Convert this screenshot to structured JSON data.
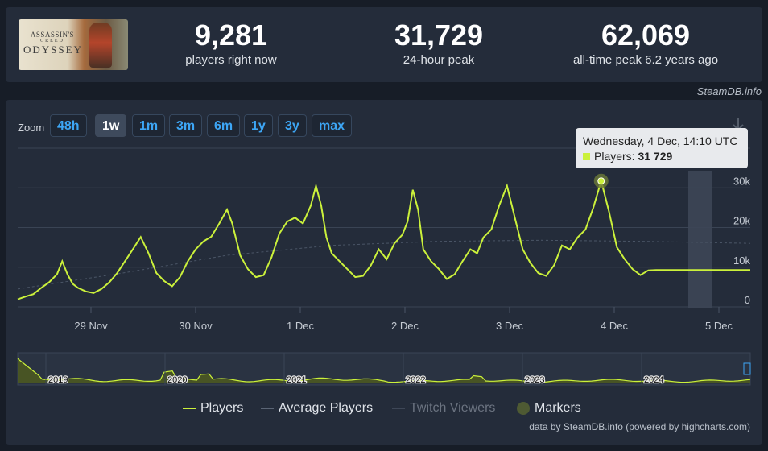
{
  "header": {
    "game_image_alt": "ASSASSIN'S CREED ODYSSEY",
    "game_title_line1": "ASSASSIN'S",
    "game_title_line2": "CREED",
    "game_title_line3": "ODYSSEY",
    "stats": [
      {
        "value": "9,281",
        "label": "players right now"
      },
      {
        "value": "31,729",
        "label": "24-hour peak"
      },
      {
        "value": "62,069",
        "label": "all-time peak 6.2 years ago"
      }
    ],
    "attribution": "SteamDB.info"
  },
  "zoom": {
    "label": "Zoom",
    "buttons": [
      "48h",
      "1w",
      "1m",
      "3m",
      "6m",
      "1y",
      "3y",
      "max"
    ],
    "active": "1w"
  },
  "tooltip": {
    "date": "Wednesday, 4 Dec, 14:10 UTC",
    "series": "Players:",
    "value": "31 729"
  },
  "legend": {
    "players": "Players",
    "average": "Average Players",
    "twitch": "Twitch Viewers",
    "markers": "Markers"
  },
  "credit": "data by SteamDB.info (powered by highcharts.com)",
  "colors": {
    "players_line": "#cbf13b",
    "average_line": "#4a5566",
    "background": "#242c3a",
    "accent_blue": "#3da6f5"
  },
  "chart_data": {
    "type": "line",
    "x_tick_labels": [
      "29 Nov",
      "30 Nov",
      "1 Dec",
      "2 Dec",
      "3 Dec",
      "4 Dec",
      "5 Dec"
    ],
    "y_tick_labels": [
      "0",
      "10k",
      "20k",
      "30k"
    ],
    "ylim": [
      0,
      40000
    ],
    "series": [
      {
        "name": "Players",
        "x_days": [
          0,
          0.15,
          0.3,
          0.45,
          0.6,
          0.75,
          0.85,
          0.95,
          1.05,
          1.15,
          1.3,
          1.45,
          1.6,
          1.75,
          1.9,
          2.05,
          2.2,
          2.35,
          2.5,
          2.65,
          2.8,
          2.95,
          3.1,
          3.25,
          3.4,
          3.55,
          3.7,
          3.85,
          4.0,
          4.1,
          4.25,
          4.4,
          4.55,
          4.7,
          4.85,
          5.0,
          5.15,
          5.3,
          5.45,
          5.6,
          5.7,
          5.8,
          5.9,
          6.0,
          6.15,
          6.3,
          6.45,
          6.6,
          6.75,
          6.9,
          7.05,
          7.2,
          7.35,
          7.45,
          7.55,
          7.65,
          7.75,
          7.9,
          8.05,
          8.2,
          8.35,
          8.5,
          8.65,
          8.78,
          8.9,
          9.05,
          9.2,
          9.35,
          9.5,
          9.65,
          9.8,
          9.95,
          10.1,
          10.25,
          10.4,
          10.55,
          10.7,
          10.85,
          11.0,
          11.15,
          11.3,
          11.45,
          11.6,
          11.75,
          11.9,
          12.05,
          12.2,
          12.35,
          12.5,
          12.65,
          12.8,
          12.95,
          13.1,
          13.25,
          13.4,
          13.55,
          13.7,
          13.85,
          14.0
        ],
        "values": [
          1900,
          2600,
          3200,
          4800,
          6200,
          8200,
          11500,
          8200,
          5800,
          4800,
          3900,
          3500,
          4500,
          6200,
          8500,
          11500,
          14500,
          17600,
          13500,
          8500,
          6500,
          5200,
          7500,
          11500,
          14500,
          16500,
          17700,
          21000,
          24500,
          21000,
          13000,
          9500,
          7500,
          8000,
          12500,
          18500,
          21500,
          22500,
          21000,
          25500,
          30500,
          25500,
          17500,
          13500,
          11500,
          9500,
          7500,
          7800,
          10500,
          14500,
          12000,
          16000,
          18200,
          21500,
          29500,
          24500,
          14500,
          11500,
          9500,
          7000,
          8200,
          11500,
          14500,
          13500,
          17500,
          19500,
          25500,
          30500,
          22500,
          14500,
          11000,
          8500,
          7800,
          10500,
          15500,
          14500,
          17500,
          19500,
          25000,
          31729,
          24000,
          15000,
          12000,
          9500,
          8000,
          9200,
          9281,
          9281,
          9281,
          9281,
          9281,
          9281,
          9281,
          9281,
          9281,
          9281,
          9281,
          9281,
          9281
        ]
      },
      {
        "name": "Average Players",
        "x_days": [
          0,
          2,
          4,
          6,
          8,
          10,
          12,
          14
        ],
        "values": [
          4500,
          8500,
          13000,
          15500,
          16500,
          16800,
          16500,
          16000
        ]
      }
    ],
    "navigator_years": [
      "2019",
      "2020",
      "2021",
      "2022",
      "2023",
      "2024"
    ],
    "grid": true,
    "legend_position": "bottom"
  }
}
